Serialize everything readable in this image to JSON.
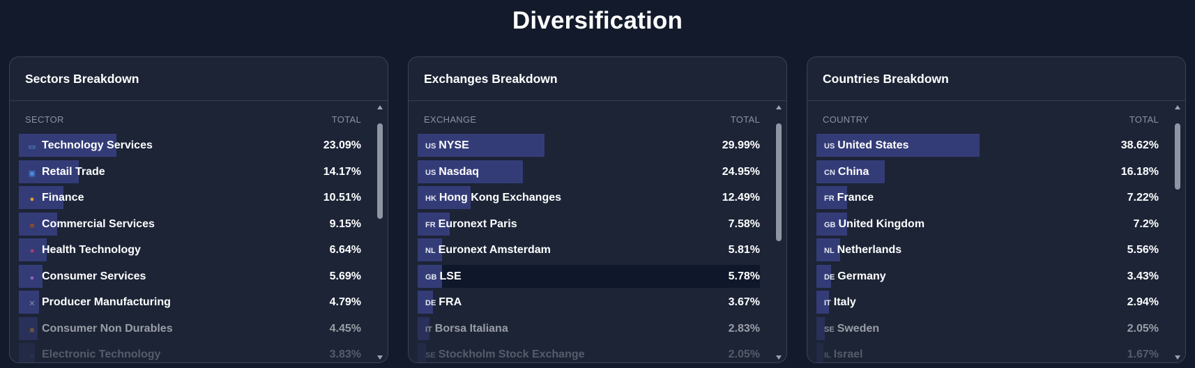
{
  "page": {
    "title": "Diversification"
  },
  "panels": [
    {
      "title": "Sectors Breakdown",
      "col_label": "SECTOR",
      "col_total": "TOTAL",
      "scroll_thumb": {
        "top_frac": 0.04,
        "size_frac": 0.39
      },
      "rows": [
        {
          "icon": "desktop-computer-icon",
          "label": "Technology Services",
          "value": "23.09%",
          "pct": 23.09
        },
        {
          "icon": "shopping-bags-icon",
          "label": "Retail Trade",
          "value": "14.17%",
          "pct": 14.17
        },
        {
          "icon": "money-bag-icon",
          "label": "Finance",
          "value": "10.51%",
          "pct": 10.51
        },
        {
          "icon": "briefcase-icon",
          "label": "Commercial Services",
          "value": "9.15%",
          "pct": 9.15
        },
        {
          "icon": "dna-icon",
          "label": "Health Technology",
          "value": "6.64%",
          "pct": 6.64
        },
        {
          "icon": "person-service-icon",
          "label": "Consumer Services",
          "value": "5.69%",
          "pct": 5.69
        },
        {
          "icon": "tools-icon",
          "label": "Producer Manufacturing",
          "value": "4.79%",
          "pct": 4.79
        },
        {
          "icon": "package-icon",
          "label": "Consumer Non Durables",
          "value": "4.45%",
          "pct": 4.45
        },
        {
          "icon": "computer-chip-icon",
          "label": "Electronic Technology",
          "value": "3.83%",
          "pct": 3.83
        }
      ]
    },
    {
      "title": "Exchanges Breakdown",
      "col_label": "EXCHANGE",
      "col_total": "TOTAL",
      "scroll_thumb": {
        "top_frac": 0.04,
        "size_frac": 0.48
      },
      "rows": [
        {
          "code": "US",
          "label": "NYSE",
          "value": "29.99%",
          "pct": 29.99
        },
        {
          "code": "US",
          "label": "Nasdaq",
          "value": "24.95%",
          "pct": 24.95
        },
        {
          "code": "HK",
          "label": "Hong Kong Exchanges",
          "value": "12.49%",
          "pct": 12.49
        },
        {
          "code": "FR",
          "label": "Euronext Paris",
          "value": "7.58%",
          "pct": 7.58
        },
        {
          "code": "NL",
          "label": "Euronext Amsterdam",
          "value": "5.81%",
          "pct": 5.81
        },
        {
          "code": "GB",
          "label": "LSE",
          "value": "5.78%",
          "pct": 5.78,
          "highlighted": true
        },
        {
          "code": "DE",
          "label": "FRA",
          "value": "3.67%",
          "pct": 3.67
        },
        {
          "code": "IT",
          "label": "Borsa Italiana",
          "value": "2.83%",
          "pct": 2.83
        },
        {
          "code": "SE",
          "label": "Stockholm Stock Exchange",
          "value": "2.05%",
          "pct": 2.05
        }
      ]
    },
    {
      "title": "Countries Breakdown",
      "col_label": "COUNTRY",
      "col_total": "TOTAL",
      "scroll_thumb": {
        "top_frac": 0.04,
        "size_frac": 0.27
      },
      "rows": [
        {
          "code": "US",
          "label": "United States",
          "value": "38.62%",
          "pct": 38.62
        },
        {
          "code": "CN",
          "label": "China",
          "value": "16.18%",
          "pct": 16.18
        },
        {
          "code": "FR",
          "label": "France",
          "value": "7.22%",
          "pct": 7.22
        },
        {
          "code": "GB",
          "label": "United Kingdom",
          "value": "7.2%",
          "pct": 7.2
        },
        {
          "code": "NL",
          "label": "Netherlands",
          "value": "5.56%",
          "pct": 5.56
        },
        {
          "code": "DE",
          "label": "Germany",
          "value": "3.43%",
          "pct": 3.43
        },
        {
          "code": "IT",
          "label": "Italy",
          "value": "2.94%",
          "pct": 2.94
        },
        {
          "code": "SE",
          "label": "Sweden",
          "value": "2.05%",
          "pct": 2.05
        },
        {
          "code": "IL",
          "label": "Israel",
          "value": "1.67%",
          "pct": 1.67
        }
      ]
    }
  ],
  "colors": {
    "bar": "#343c78",
    "background": "#121a2b",
    "panel": "#1c2436",
    "highlight_row": "#0f172a"
  }
}
